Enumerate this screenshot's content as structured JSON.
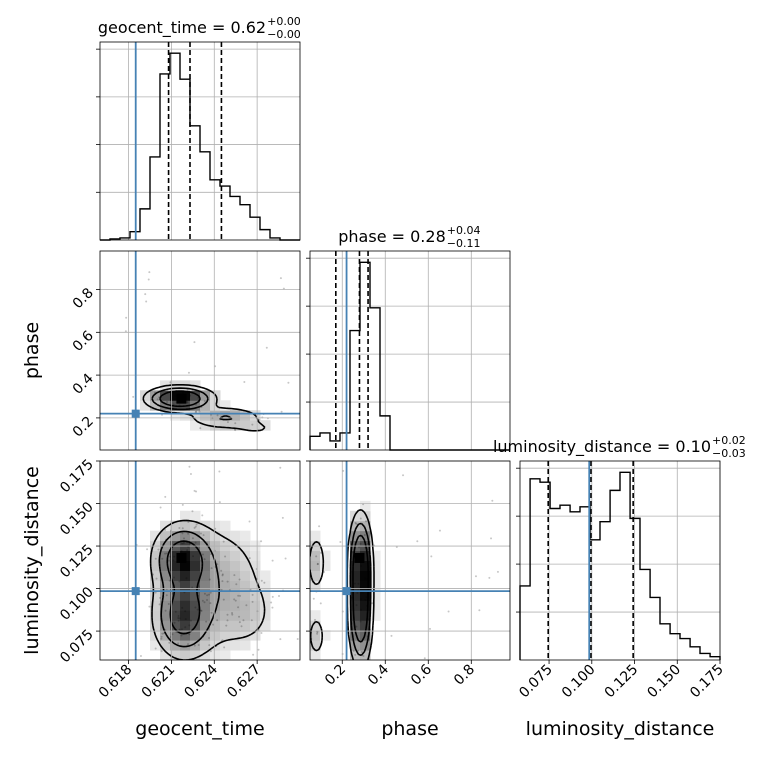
{
  "chart_data": {
    "type": "corner",
    "truths": {
      "geocent_time": 0.6185,
      "phase": 0.22,
      "luminosity_distance": 0.0985
    },
    "truth_color": "#4682b4",
    "parameters": [
      {
        "name": "geocent_time",
        "label": "geocent_time",
        "title_main": "geocent_time = 0.62",
        "title_sup": "+0.00",
        "title_sub": "−0.00",
        "range": [
          0.616,
          0.63
        ],
        "ticks": [
          0.618,
          0.621,
          0.624,
          0.627
        ],
        "tick_labels": [
          "0.618",
          "0.621",
          "0.624",
          "0.627"
        ],
        "quantiles": [
          0.6208,
          0.6223,
          0.6245
        ],
        "hist": {
          "edges": [
            0.616,
            0.6167,
            0.6174,
            0.6181,
            0.6188,
            0.6195,
            0.6202,
            0.6209,
            0.6216,
            0.6223,
            0.623,
            0.6237,
            0.6244,
            0.6251,
            0.6258,
            0.6265,
            0.6272,
            0.6279,
            0.6286,
            0.6293,
            0.63
          ],
          "counts": [
            0,
            1,
            2,
            8,
            30,
            80,
            160,
            180,
            155,
            110,
            85,
            58,
            52,
            42,
            34,
            22,
            10,
            2,
            0,
            0
          ]
        }
      },
      {
        "name": "phase",
        "label": "phase",
        "title_main": "phase = 0.28",
        "title_sup": "+0.04",
        "title_sub": "−0.11",
        "range": [
          0.05,
          0.98
        ],
        "ticks": [
          0.2,
          0.4,
          0.6,
          0.8
        ],
        "tick_labels": [
          "0.2",
          "0.4",
          "0.6",
          "0.8"
        ],
        "quantiles": [
          0.17,
          0.28,
          0.32
        ],
        "hist": {
          "edges": [
            0.05,
            0.0965,
            0.143,
            0.1895,
            0.236,
            0.2825,
            0.329,
            0.3755,
            0.422,
            0.4685,
            0.515,
            0.5615,
            0.608,
            0.6545,
            0.701,
            0.7475,
            0.794,
            0.8405,
            0.887,
            0.9335,
            0.98
          ],
          "counts": [
            12,
            15,
            8,
            15,
            105,
            165,
            125,
            30,
            0,
            0,
            0,
            0,
            0,
            0,
            0,
            0,
            0,
            0,
            0,
            0
          ]
        }
      },
      {
        "name": "luminosity_distance",
        "label": "luminosity_distance",
        "title_main": "luminosity_distance = 0.10",
        "title_sup": "+0.02",
        "title_sub": "−0.03",
        "range": [
          0.058,
          0.175
        ],
        "ticks": [
          0.075,
          0.1,
          0.125,
          0.15,
          0.175
        ],
        "tick_labels": [
          "0.075",
          "0.100",
          "0.125",
          "0.150",
          "0.175"
        ],
        "quantiles": [
          0.0745,
          0.0995,
          0.1242
        ],
        "hist": {
          "edges": [
            0.058,
            0.0639,
            0.0697,
            0.0756,
            0.0814,
            0.0873,
            0.0931,
            0.099,
            0.1048,
            0.1107,
            0.1165,
            0.1224,
            0.1282,
            0.1341,
            0.1399,
            0.1458,
            0.1516,
            0.1575,
            0.1633,
            0.1692,
            0.175
          ],
          "counts": [
            45,
            110,
            108,
            92,
            94,
            90,
            93,
            73,
            84,
            103,
            114,
            86,
            55,
            38,
            22,
            16,
            13,
            8,
            4,
            2
          ]
        }
      }
    ],
    "pairs": [
      {
        "x": "geocent_time",
        "y": "phase",
        "mode_x": 0.6217,
        "mode_y": 0.29
      },
      {
        "x": "geocent_time",
        "y": "luminosity_distance",
        "mode_x": 0.6217,
        "mode_y": 0.118
      },
      {
        "x": "phase",
        "y": "luminosity_distance",
        "mode_x": 0.28,
        "mode_y": 0.118
      }
    ]
  }
}
